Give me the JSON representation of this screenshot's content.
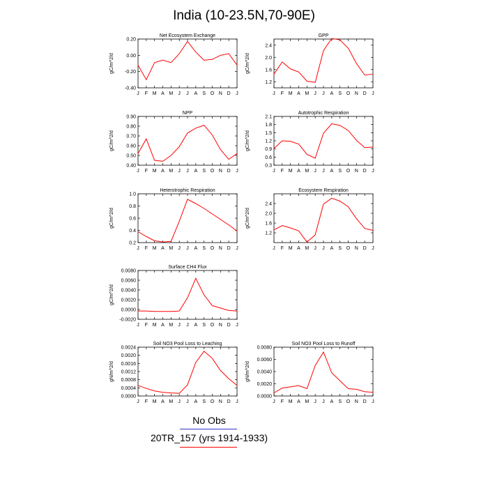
{
  "title": "India (10-23.5N,70-90E)",
  "months": [
    "J",
    "F",
    "M",
    "A",
    "M",
    "J",
    "J",
    "A",
    "S",
    "O",
    "N",
    "D",
    "J"
  ],
  "legend": {
    "obs_label": "No Obs",
    "run_label": "20TR_157 (yrs 1914-1933)",
    "obs_color": "#3333cc",
    "run_color": "#ff0000"
  },
  "line_color": "#ff0000",
  "chart_data": [
    {
      "type": "line",
      "title": "Net Ecosystem Exchange",
      "ylabel": "gC/m^2/d",
      "ylim": [
        -0.4,
        0.2
      ],
      "yticks": [
        -0.4,
        -0.2,
        0.0,
        0.2
      ],
      "ytick_labels": [
        "-0.40",
        "-0.20",
        "0.00",
        "0.20"
      ],
      "x": [
        "J",
        "F",
        "M",
        "A",
        "M",
        "J",
        "J",
        "A",
        "S",
        "O",
        "N",
        "D",
        "J"
      ],
      "series": [
        {
          "values": [
            -0.12,
            -0.3,
            -0.09,
            -0.06,
            -0.09,
            0.02,
            0.17,
            0.04,
            -0.06,
            -0.05,
            0.0,
            0.02,
            -0.12
          ]
        }
      ]
    },
    {
      "type": "line",
      "title": "GPP",
      "ylabel": "gC/m^2/d",
      "ylim": [
        1.0,
        2.6
      ],
      "yticks": [
        1.2,
        1.6,
        2.0,
        2.4
      ],
      "ytick_labels": [
        "1.2",
        "1.6",
        "2.0",
        "2.4"
      ],
      "x": [
        "J",
        "F",
        "M",
        "A",
        "M",
        "J",
        "J",
        "A",
        "S",
        "O",
        "N",
        "D",
        "J"
      ],
      "series": [
        {
          "values": [
            1.45,
            1.85,
            1.62,
            1.52,
            1.22,
            1.18,
            2.22,
            2.62,
            2.57,
            2.3,
            1.8,
            1.42,
            1.45
          ]
        }
      ]
    },
    {
      "type": "line",
      "title": "NPP",
      "ylabel": "gC/m^2/d",
      "ylim": [
        0.4,
        0.9
      ],
      "yticks": [
        0.4,
        0.5,
        0.6,
        0.7,
        0.8,
        0.9
      ],
      "ytick_labels": [
        "0.40",
        "0.50",
        "0.60",
        "0.70",
        "0.80",
        "0.90"
      ],
      "x": [
        "J",
        "F",
        "M",
        "A",
        "M",
        "J",
        "J",
        "A",
        "S",
        "O",
        "N",
        "D",
        "J"
      ],
      "series": [
        {
          "values": [
            0.52,
            0.67,
            0.45,
            0.44,
            0.5,
            0.59,
            0.73,
            0.78,
            0.81,
            0.71,
            0.56,
            0.46,
            0.52
          ]
        }
      ]
    },
    {
      "type": "line",
      "title": "Autotrophic Respiration",
      "ylabel": "gC/m^2/d",
      "ylim": [
        0.3,
        2.1
      ],
      "yticks": [
        0.3,
        0.6,
        0.9,
        1.2,
        1.5,
        1.8,
        2.1
      ],
      "ytick_labels": [
        "0.3",
        "0.6",
        "0.9",
        "1.2",
        "1.5",
        "1.8",
        "2.1"
      ],
      "x": [
        "J",
        "F",
        "M",
        "A",
        "M",
        "J",
        "J",
        "A",
        "S",
        "O",
        "N",
        "D",
        "J"
      ],
      "series": [
        {
          "values": [
            0.92,
            1.2,
            1.18,
            1.08,
            0.7,
            0.56,
            1.48,
            1.83,
            1.77,
            1.58,
            1.22,
            0.95,
            0.97
          ]
        }
      ]
    },
    {
      "type": "line",
      "title": "Heterotrophic Respiration",
      "ylabel": "gC/m^2/d",
      "ylim": [
        0.2,
        1.0
      ],
      "yticks": [
        0.2,
        0.4,
        0.6,
        0.8,
        1.0
      ],
      "ytick_labels": [
        "0.2",
        "0.4",
        "0.6",
        "0.8",
        "1.0"
      ],
      "x": [
        "J",
        "F",
        "M",
        "A",
        "M",
        "J",
        "J",
        "A",
        "S",
        "O",
        "N",
        "D",
        "J"
      ],
      "series": [
        {
          "values": [
            0.38,
            0.3,
            0.23,
            0.21,
            0.22,
            0.55,
            0.91,
            0.84,
            0.76,
            0.67,
            0.58,
            0.49,
            0.39
          ]
        }
      ]
    },
    {
      "type": "line",
      "title": "Ecosystem Respiration",
      "ylabel": "gC/m^2/d",
      "ylim": [
        0.8,
        2.8
      ],
      "yticks": [
        1.2,
        1.6,
        2.0,
        2.4
      ],
      "ytick_labels": [
        "1.2",
        "1.6",
        "2.0",
        "2.4"
      ],
      "x": [
        "J",
        "F",
        "M",
        "A",
        "M",
        "J",
        "J",
        "A",
        "S",
        "O",
        "N",
        "D",
        "J"
      ],
      "series": [
        {
          "values": [
            1.32,
            1.5,
            1.4,
            1.28,
            0.82,
            1.12,
            2.38,
            2.62,
            2.5,
            2.27,
            1.78,
            1.38,
            1.3
          ]
        }
      ]
    },
    {
      "type": "line",
      "title": "Surface CH4 Flux",
      "ylabel": "gC/m^2/d",
      "ylim": [
        -0.002,
        0.008
      ],
      "yticks": [
        -0.002,
        0.0,
        0.002,
        0.004,
        0.006,
        0.008
      ],
      "ytick_labels": [
        "-0.0020",
        "0.0000",
        "0.0020",
        "0.0040",
        "0.0060",
        "0.0080"
      ],
      "x": [
        "J",
        "F",
        "M",
        "A",
        "M",
        "J",
        "J",
        "A",
        "S",
        "O",
        "N",
        "D",
        "J"
      ],
      "series": [
        {
          "values": [
            -0.0003,
            -0.0003,
            -0.0004,
            -0.0004,
            -0.0004,
            -0.0003,
            0.0024,
            0.0064,
            0.003,
            0.0008,
            0.0003,
            -0.0002,
            -0.0003
          ]
        }
      ]
    },
    {
      "type": "line",
      "title": "Soil NO3 Pool Loss to Leaching",
      "ylabel": "gN/m^2/d",
      "ylim": [
        0.0,
        0.0024
      ],
      "yticks": [
        0.0,
        0.0004,
        0.0008,
        0.0012,
        0.0016,
        0.002,
        0.0024
      ],
      "ytick_labels": [
        "0.0000",
        "0.0004",
        "0.0008",
        "0.0012",
        "0.0016",
        "0.0020",
        "0.0024"
      ],
      "x": [
        "J",
        "F",
        "M",
        "A",
        "M",
        "J",
        "J",
        "A",
        "S",
        "O",
        "N",
        "D",
        "J"
      ],
      "series": [
        {
          "values": [
            0.00052,
            0.00037,
            0.00025,
            0.00018,
            0.00015,
            0.00013,
            0.00055,
            0.00165,
            0.0022,
            0.00185,
            0.00125,
            0.00085,
            0.00052
          ]
        }
      ]
    },
    {
      "type": "line",
      "title": "Soil NO3 Pool Loss to Runoff",
      "ylabel": "gN/m^2/d",
      "ylim": [
        0.0,
        0.008
      ],
      "yticks": [
        0.0,
        0.002,
        0.004,
        0.006,
        0.008
      ],
      "ytick_labels": [
        "0.0000",
        "0.0020",
        "0.0040",
        "0.0060",
        "0.0080"
      ],
      "x": [
        "J",
        "F",
        "M",
        "A",
        "M",
        "J",
        "J",
        "A",
        "S",
        "O",
        "N",
        "D",
        "J"
      ],
      "series": [
        {
          "values": [
            0.0005,
            0.0013,
            0.0015,
            0.0017,
            0.0012,
            0.005,
            0.0072,
            0.0038,
            0.0025,
            0.0012,
            0.0011,
            0.0007,
            0.0006
          ]
        }
      ]
    }
  ]
}
